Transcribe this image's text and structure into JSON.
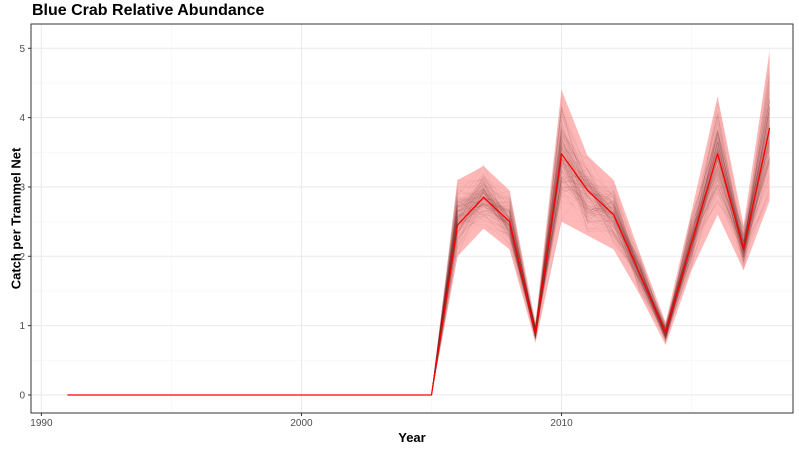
{
  "chart_data": {
    "type": "line",
    "title": "Blue Crab Relative Abundance",
    "xlabel": "Year",
    "ylabel": "Catch per Trammel Net",
    "xlim": [
      1989.6,
      2018.9
    ],
    "ylim": [
      -0.26,
      5.35
    ],
    "x_ticks": [
      1990,
      2000,
      2010
    ],
    "y_ticks": [
      0,
      1,
      2,
      3,
      4,
      5
    ],
    "grid": true,
    "legend": "none",
    "colors": {
      "mean_line": "#ff0000",
      "ribbon": "#ff4d4d",
      "simulations": "#000000",
      "grid_major": "#ebebeb",
      "grid_minor": "#f5f5f5",
      "panel_border": "#333333"
    },
    "series": [
      {
        "x": [
          1991,
          1992,
          1993,
          1994,
          1995,
          1996,
          1997,
          1998,
          1999,
          2000,
          2001,
          2002,
          2003,
          2004,
          2005,
          2006,
          2007,
          2008,
          2009,
          2010,
          2011,
          2012,
          2013,
          2014,
          2015,
          2016,
          2017,
          2018
        ],
        "values": [
          0,
          0,
          0,
          0,
          0,
          0,
          0,
          0,
          0,
          0,
          0,
          0,
          0,
          0,
          0,
          2.45,
          2.85,
          2.5,
          0.88,
          3.48,
          2.95,
          2.6,
          1.75,
          0.9,
          2.2,
          3.48,
          2.1,
          3.85
        ]
      }
    ],
    "band": {
      "x": [
        2005,
        2006,
        2007,
        2008,
        2009,
        2010,
        2011,
        2012,
        2013,
        2014,
        2015,
        2016,
        2017,
        2018
      ],
      "lower": [
        0,
        2.0,
        2.4,
        2.1,
        0.75,
        2.5,
        2.3,
        2.1,
        1.45,
        0.72,
        1.8,
        2.6,
        1.8,
        2.8
      ],
      "upper": [
        0,
        3.1,
        3.3,
        2.95,
        1.05,
        4.4,
        3.45,
        3.1,
        2.05,
        1.05,
        2.65,
        4.3,
        2.45,
        4.95
      ]
    }
  }
}
